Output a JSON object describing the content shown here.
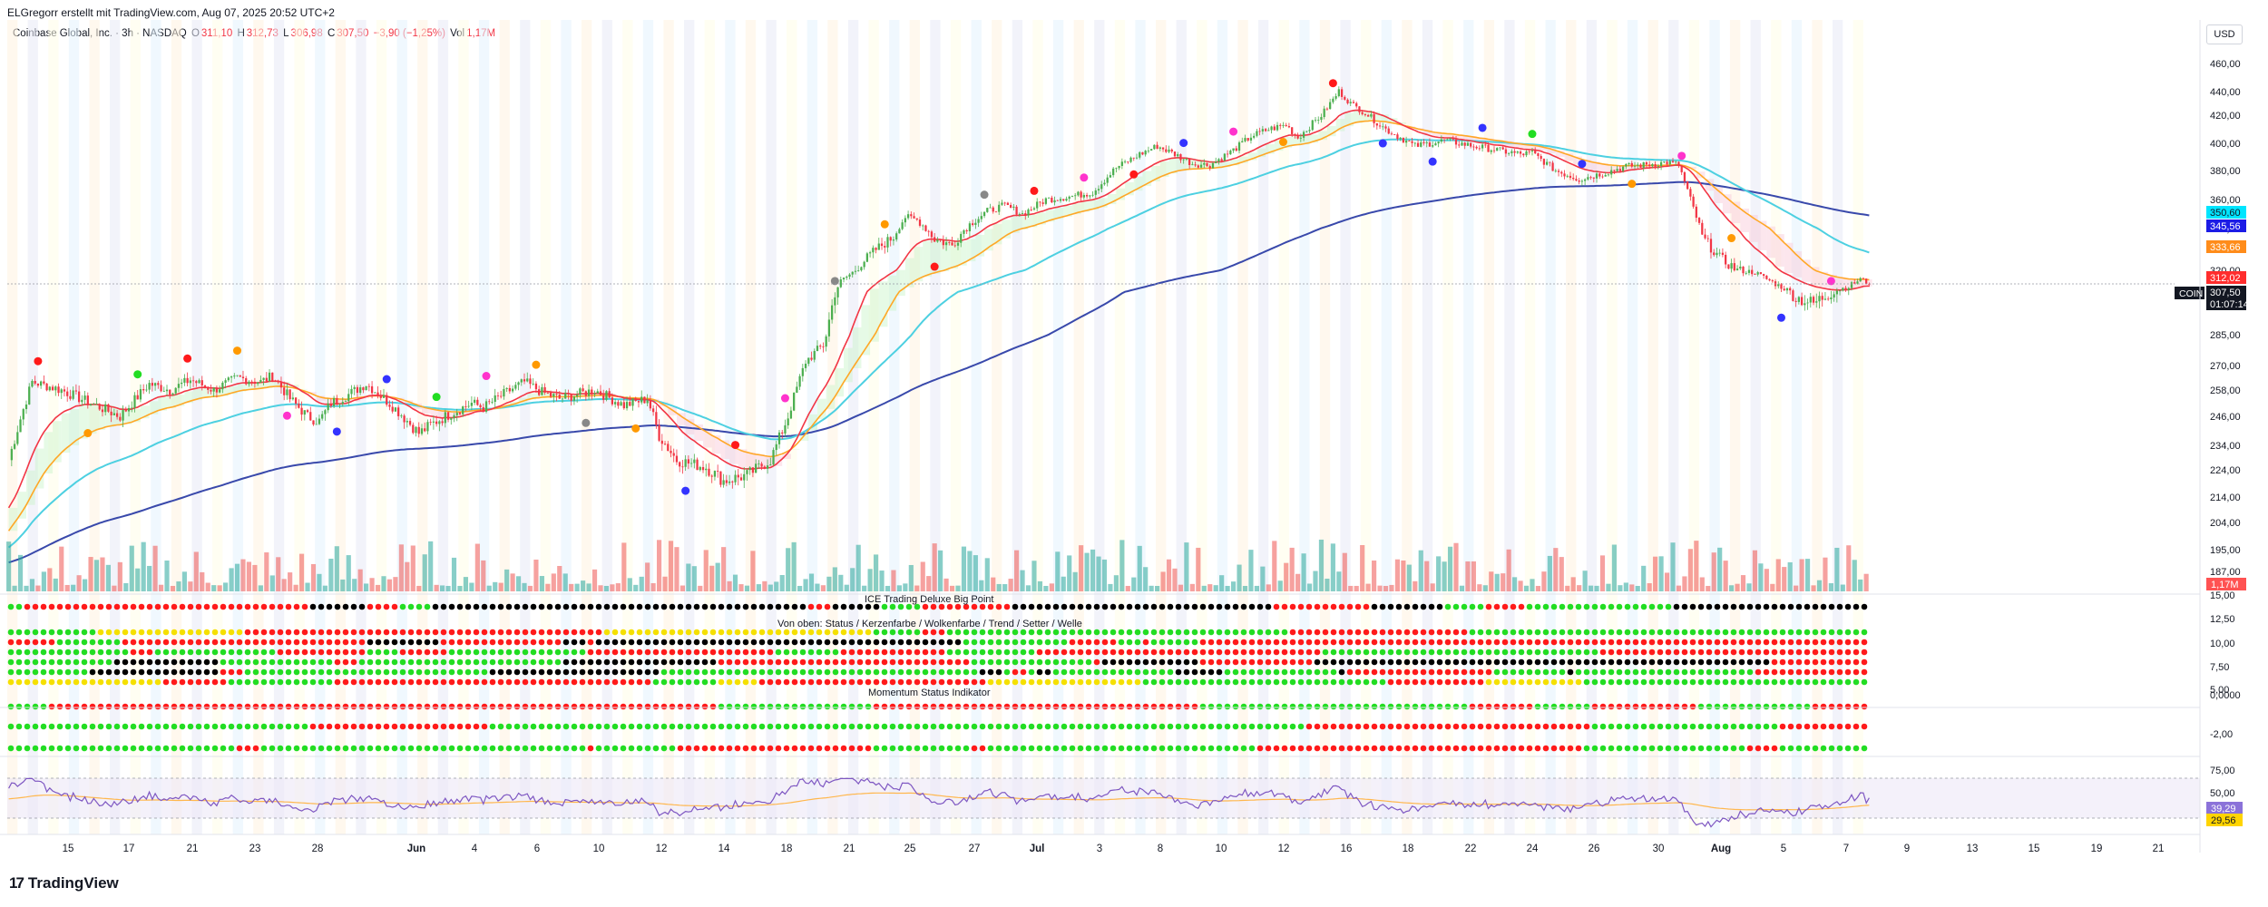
{
  "header": {
    "attribution": "ELGregorr erstellt mit TradingView.com, Aug 07, 2025 20:52 UTC+2",
    "currency": "USD",
    "legend": {
      "name": "Coinbase Global, Inc. · 3h · NASDAQ",
      "o_label": "O",
      "o": "311,10",
      "h_label": "H",
      "h": "312,73",
      "l_label": "L",
      "l": "306,98",
      "c_label": "C",
      "c": "307,50",
      "change": "−3,90 (−1,25%)",
      "vol_label": "Vol",
      "vol": "1,17M"
    }
  },
  "footer": {
    "brand": "TradingView",
    "logo_glyph": "17"
  },
  "panes": {
    "big_point_title": "ICE Trading Deluxe Big Point",
    "status_title": "Von oben: Status / Kerzenfarbe / Wolkenfarbe / Trend / Setter / Welle",
    "momentum_title": "Momentum Status Indikator"
  },
  "price_badges": [
    {
      "text": "350,60",
      "bg": "#00e5ff",
      "fg": "#131722"
    },
    {
      "text": "345,56",
      "bg": "#1c1ce6",
      "fg": "#ffffff"
    },
    {
      "text": "333,66",
      "bg": "#ff8c1a",
      "fg": "#ffffff"
    },
    {
      "text": "312,02",
      "bg": "#ff2d2d",
      "fg": "#ffffff"
    },
    {
      "text": "307,50",
      "bg": "#131722",
      "fg": "#ffffff"
    },
    {
      "text": "01:07:14",
      "bg": "#131722",
      "fg": "#ffffff"
    }
  ],
  "symbol_badge": "COIN",
  "volume_badge": "1,17M",
  "lower_badges": [
    {
      "text": "39,29",
      "bg": "#8b72d9",
      "fg": "#ffffff"
    },
    {
      "text": "29,56",
      "bg": "#ffd400",
      "fg": "#131722"
    }
  ],
  "colors": {
    "up": "#26a69a",
    "down": "#ef5350",
    "candle_up": "#4caf50",
    "candle_down": "#f23645",
    "ema_red": "#f23645",
    "ema_orange": "#ffa726",
    "ema_cyan": "#4dd0e1",
    "ema_blue": "#3949ab",
    "dot_green": "#22dd22",
    "dot_red": "#ff1a1a",
    "dot_black": "#000000",
    "dot_yellow": "#f5e000"
  },
  "chart_data": {
    "type": "candlestick",
    "symbol": "COIN",
    "timeframe": "3h",
    "price_axis_ticks": [
      460,
      440,
      420,
      400,
      380,
      360,
      340,
      320,
      300,
      285,
      270,
      258,
      246,
      234,
      224,
      214,
      204,
      195,
      187
    ],
    "price_axis_labels": [
      "460,00",
      "440,00",
      "420,00",
      "400,00",
      "380,00",
      "360,00",
      "340,00",
      "320,00",
      "300,00",
      "285,00",
      "270,00",
      "258,00",
      "246,00",
      "234,00",
      "224,00",
      "214,00",
      "204,00",
      "195,00",
      "187,00"
    ],
    "indicator_axis_labels": [
      "15,00",
      "12,50",
      "10,00",
      "7,50",
      "5,00",
      "0,0000",
      "-2,00",
      "75,00",
      "50,00",
      "25,00"
    ],
    "x_tick_labels": [
      "15",
      "17",
      "21",
      "23",
      "28",
      "Jun",
      "4",
      "6",
      "10",
      "12",
      "14",
      "18",
      "21",
      "25",
      "27",
      "Jul",
      "3",
      "8",
      "10",
      "12",
      "16",
      "18",
      "22",
      "24",
      "26",
      "30",
      "Aug",
      "5",
      "7",
      "9",
      "13",
      "15",
      "19",
      "21"
    ],
    "last_close": 307.5,
    "ohlc_last": {
      "open": 311.1,
      "high": 312.73,
      "low": 306.98,
      "close": 307.5
    },
    "close_path": [
      [
        0,
        228
      ],
      [
        8,
        262
      ],
      [
        18,
        258
      ],
      [
        28,
        252
      ],
      [
        38,
        246
      ],
      [
        48,
        261
      ],
      [
        55,
        258
      ],
      [
        62,
        263
      ],
      [
        70,
        258
      ],
      [
        78,
        264
      ],
      [
        86,
        262
      ],
      [
        90,
        265
      ],
      [
        96,
        254
      ],
      [
        102,
        246
      ],
      [
        106,
        244
      ],
      [
        110,
        252
      ],
      [
        116,
        256
      ],
      [
        122,
        261
      ],
      [
        130,
        252
      ],
      [
        140,
        239
      ],
      [
        146,
        244
      ],
      [
        152,
        248
      ],
      [
        158,
        252
      ],
      [
        162,
        250
      ],
      [
        170,
        257
      ],
      [
        176,
        262
      ],
      [
        182,
        257
      ],
      [
        188,
        254
      ],
      [
        194,
        256
      ],
      [
        200,
        258
      ],
      [
        210,
        251
      ],
      [
        218,
        254
      ],
      [
        222,
        238
      ],
      [
        228,
        228
      ],
      [
        238,
        225
      ],
      [
        244,
        220
      ],
      [
        252,
        222
      ],
      [
        260,
        228
      ],
      [
        266,
        246
      ],
      [
        272,
        272
      ],
      [
        278,
        280
      ],
      [
        284,
        310
      ],
      [
        290,
        322
      ],
      [
        296,
        330
      ],
      [
        302,
        336
      ],
      [
        306,
        348
      ],
      [
        310,
        346
      ],
      [
        316,
        335
      ],
      [
        322,
        332
      ],
      [
        328,
        343
      ],
      [
        334,
        352
      ],
      [
        340,
        356
      ],
      [
        346,
        350
      ],
      [
        354,
        360
      ],
      [
        362,
        362
      ],
      [
        370,
        365
      ],
      [
        378,
        382
      ],
      [
        386,
        392
      ],
      [
        392,
        398
      ],
      [
        398,
        392
      ],
      [
        404,
        385
      ],
      [
        410,
        384
      ],
      [
        418,
        395
      ],
      [
        424,
        405
      ],
      [
        430,
        410
      ],
      [
        436,
        413
      ],
      [
        440,
        404
      ],
      [
        448,
        420
      ],
      [
        454,
        440
      ],
      [
        458,
        430
      ],
      [
        464,
        420
      ],
      [
        470,
        410
      ],
      [
        480,
        398
      ],
      [
        490,
        402
      ],
      [
        500,
        398
      ],
      [
        508,
        395
      ],
      [
        516,
        392
      ],
      [
        520,
        393
      ],
      [
        528,
        380
      ],
      [
        536,
        374
      ],
      [
        544,
        378
      ],
      [
        552,
        383
      ],
      [
        558,
        384
      ],
      [
        566,
        386
      ],
      [
        570,
        384
      ],
      [
        574,
        360
      ],
      [
        578,
        336
      ],
      [
        584,
        326
      ],
      [
        590,
        320
      ],
      [
        596,
        318
      ],
      [
        604,
        306
      ],
      [
        610,
        298
      ],
      [
        616,
        296
      ],
      [
        622,
        300
      ],
      [
        628,
        305
      ],
      [
        632,
        312
      ],
      [
        635,
        307.5
      ]
    ],
    "high": 452,
    "low": 228,
    "ema_fast_last": 312.02,
    "ema_mid_last": 333.66,
    "ema_slow_last": 350.6,
    "ema_long_last": 345.56,
    "oscillator_last": [
      39.29,
      29.56
    ],
    "volume_last": "1,17M"
  }
}
